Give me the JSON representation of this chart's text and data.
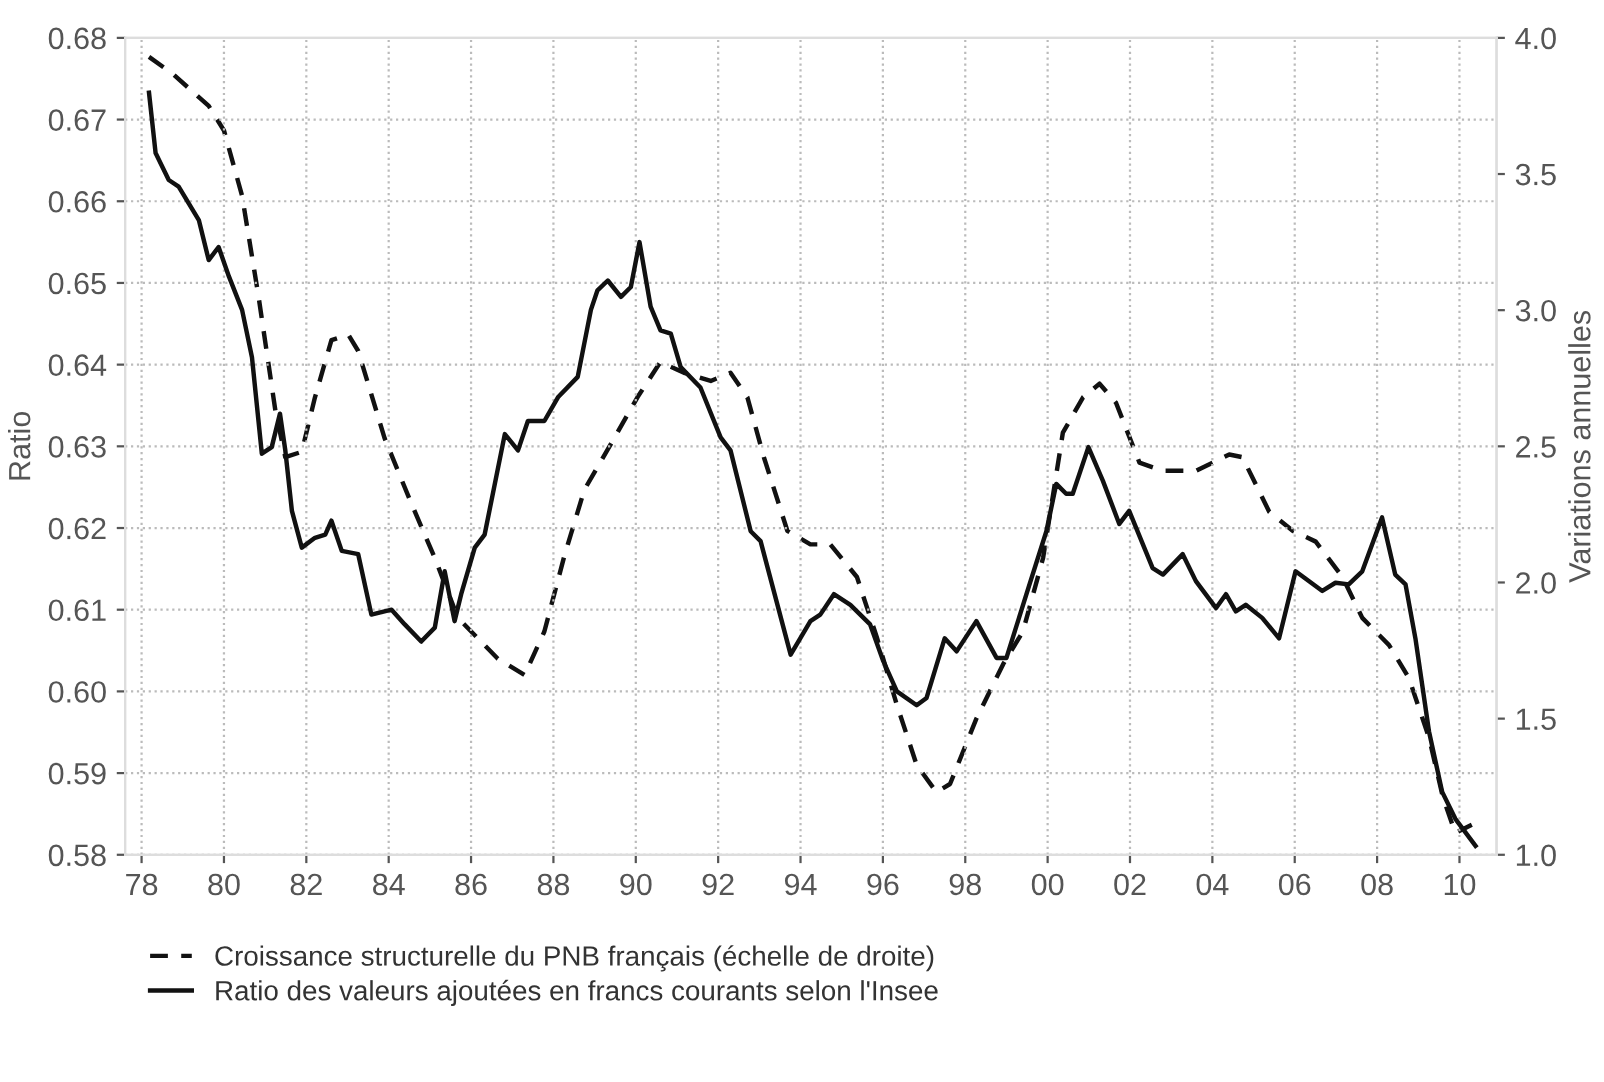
{
  "chart_data": {
    "type": "line",
    "xlabel": null,
    "ylabel": "Ratio",
    "y2label": "Variations annuelles",
    "xlim": [
      1977.6,
      2010.9
    ],
    "xticks": [
      {
        "value": 1978,
        "label": "78"
      },
      {
        "value": 1980,
        "label": "80"
      },
      {
        "value": 1982,
        "label": "82"
      },
      {
        "value": 1984,
        "label": "84"
      },
      {
        "value": 1986,
        "label": "86"
      },
      {
        "value": 1988,
        "label": "88"
      },
      {
        "value": 1990,
        "label": "90"
      },
      {
        "value": 1992,
        "label": "92"
      },
      {
        "value": 1994,
        "label": "94"
      },
      {
        "value": 1996,
        "label": "96"
      },
      {
        "value": 1998,
        "label": "98"
      },
      {
        "value": 2000,
        "label": "00"
      },
      {
        "value": 2002,
        "label": "02"
      },
      {
        "value": 2004,
        "label": "04"
      },
      {
        "value": 2006,
        "label": "06"
      },
      {
        "value": 2008,
        "label": "08"
      },
      {
        "value": 2010,
        "label": "10"
      }
    ],
    "ylim": [
      0.58,
      0.68
    ],
    "yticks": [
      {
        "value": 0.58,
        "label": "0.58"
      },
      {
        "value": 0.59,
        "label": "0.59"
      },
      {
        "value": 0.6,
        "label": "0.60"
      },
      {
        "value": 0.61,
        "label": "0.61"
      },
      {
        "value": 0.62,
        "label": "0.62"
      },
      {
        "value": 0.63,
        "label": "0.63"
      },
      {
        "value": 0.64,
        "label": "0.64"
      },
      {
        "value": 0.65,
        "label": "0.65"
      },
      {
        "value": 0.66,
        "label": "0.66"
      },
      {
        "value": 0.67,
        "label": "0.67"
      },
      {
        "value": 0.68,
        "label": "0.68"
      }
    ],
    "y2lim": [
      1.0,
      4.0
    ],
    "y2ticks": [
      {
        "value": 1.0,
        "label": "1.0"
      },
      {
        "value": 1.5,
        "label": "1.5"
      },
      {
        "value": 2.0,
        "label": "2.0"
      },
      {
        "value": 2.5,
        "label": "2.5"
      },
      {
        "value": 3.0,
        "label": "3.0"
      },
      {
        "value": 3.5,
        "label": "3.5"
      },
      {
        "value": 4.0,
        "label": "4.0"
      }
    ],
    "grid": true,
    "legend": "bottom",
    "marker": "none",
    "series": [
      {
        "name": "Croissance structurelle du PNB français (échelle de droite)",
        "color": "#111111",
        "axis": "y2",
        "line_style": "dashed",
        "x": [
          1978.18,
          1978.74,
          1979.63,
          1980.0,
          1980.44,
          1980.84,
          1981.25,
          1981.49,
          1981.89,
          1982.21,
          1982.61,
          1983.02,
          1983.26,
          1983.9,
          1984.55,
          1985.12,
          1985.68,
          1986.65,
          1987.3,
          1987.78,
          1988.27,
          1988.75,
          1989.4,
          1990.04,
          1990.6,
          1991.17,
          1991.82,
          1992.3,
          1992.71,
          1993.11,
          1993.68,
          1994.24,
          1994.72,
          1995.37,
          1995.85,
          1996.34,
          1996.82,
          1997.3,
          1997.63,
          1998.27,
          1998.92,
          1999.4,
          1999.89,
          2000.37,
          2000.86,
          2001.26,
          2001.66,
          2002.23,
          2002.8,
          2003.6,
          2004.41,
          2004.73,
          2005.38,
          2005.95,
          2006.51,
          2007.16,
          2007.64,
          2008.29,
          2008.77,
          2009.26,
          2009.6,
          2009.9,
          2010.3
        ],
        "values": [
          3.93,
          3.87,
          3.75,
          3.66,
          3.42,
          3.05,
          2.63,
          2.46,
          2.48,
          2.68,
          2.89,
          2.91,
          2.85,
          2.53,
          2.29,
          2.09,
          1.87,
          1.72,
          1.66,
          1.82,
          2.1,
          2.34,
          2.51,
          2.68,
          2.81,
          2.77,
          2.74,
          2.77,
          2.68,
          2.46,
          2.19,
          2.14,
          2.14,
          2.02,
          1.8,
          1.55,
          1.33,
          1.23,
          1.26,
          1.5,
          1.7,
          1.82,
          2.09,
          2.55,
          2.68,
          2.73,
          2.66,
          2.44,
          2.41,
          2.41,
          2.47,
          2.46,
          2.26,
          2.19,
          2.15,
          2.02,
          1.87,
          1.77,
          1.65,
          1.43,
          1.21,
          1.08,
          1.11
        ]
      },
      {
        "name": "Ratio des valeurs ajoutées en francs courants selon l'Insee",
        "color": "#111111",
        "line_style": "solid",
        "x": [
          1978.18,
          1978.34,
          1978.66,
          1978.9,
          1979.39,
          1979.63,
          1979.87,
          1980.12,
          1980.44,
          1980.68,
          1980.92,
          1981.16,
          1981.36,
          1981.49,
          1981.65,
          1981.89,
          1982.21,
          1982.46,
          1982.61,
          1982.86,
          1983.26,
          1983.58,
          1984.07,
          1984.39,
          1984.79,
          1985.12,
          1985.36,
          1985.6,
          1985.76,
          1986.09,
          1986.33,
          1986.82,
          1987.14,
          1987.38,
          1987.78,
          1988.11,
          1988.59,
          1988.91,
          1989.07,
          1989.32,
          1989.64,
          1989.88,
          1990.09,
          1990.36,
          1990.6,
          1990.85,
          1991.09,
          1991.57,
          1992.06,
          1992.3,
          1992.79,
          1993.03,
          1993.76,
          1994.24,
          1994.48,
          1994.81,
          1995.21,
          1995.69,
          1996.01,
          1996.34,
          1996.82,
          1997.06,
          1997.5,
          1997.79,
          1998.27,
          1998.76,
          1999.0,
          1999.56,
          1999.97,
          2000.21,
          2000.45,
          2000.61,
          2000.99,
          2001.34,
          2001.74,
          2001.98,
          2002.55,
          2002.8,
          2003.28,
          2003.6,
          2004.09,
          2004.33,
          2004.57,
          2004.81,
          2005.21,
          2005.62,
          2006.02,
          2006.67,
          2006.99,
          2007.31,
          2007.64,
          2008.12,
          2008.44,
          2008.69,
          2008.93,
          2009.26,
          2009.58,
          2009.9,
          2010.39
        ],
        "values": [
          0.6733,
          0.6659,
          0.6626,
          0.6618,
          0.6577,
          0.6528,
          0.6544,
          0.6508,
          0.6467,
          0.6409,
          0.6291,
          0.6299,
          0.634,
          0.6295,
          0.6221,
          0.6176,
          0.6188,
          0.6192,
          0.6209,
          0.6172,
          0.6168,
          0.6094,
          0.61,
          0.6082,
          0.6061,
          0.6078,
          0.6147,
          0.6086,
          0.6119,
          0.6176,
          0.6192,
          0.6315,
          0.6295,
          0.6331,
          0.6331,
          0.636,
          0.6385,
          0.6467,
          0.6491,
          0.6503,
          0.6483,
          0.6495,
          0.655,
          0.6471,
          0.6442,
          0.6438,
          0.6397,
          0.6372,
          0.6311,
          0.6295,
          0.6196,
          0.6184,
          0.6045,
          0.6086,
          0.6094,
          0.6119,
          0.6106,
          0.6082,
          0.6037,
          0.6,
          0.5983,
          0.5992,
          0.6065,
          0.6049,
          0.6086,
          0.6041,
          0.6041,
          0.6131,
          0.6196,
          0.6254,
          0.6242,
          0.6242,
          0.6299,
          0.6258,
          0.6205,
          0.6221,
          0.6151,
          0.6143,
          0.6168,
          0.6135,
          0.6102,
          0.6119,
          0.6098,
          0.6106,
          0.609,
          0.6065,
          0.6147,
          0.6123,
          0.6133,
          0.6131,
          0.6147,
          0.6213,
          0.6143,
          0.6131,
          0.6065,
          0.5951,
          0.5877,
          0.5844,
          0.5811
        ]
      }
    ]
  }
}
